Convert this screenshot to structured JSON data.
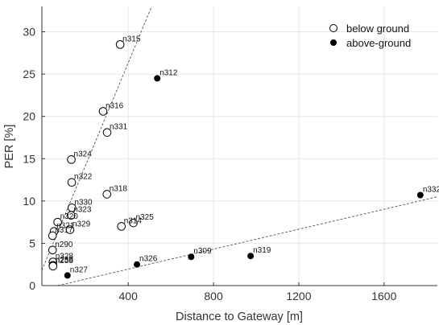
{
  "chart_data": {
    "type": "scatter",
    "xlabel": "Distance to Gateway [m]",
    "ylabel": "PER [%]",
    "xlim": [
      -5,
      1850
    ],
    "ylim": [
      0,
      33
    ],
    "xticks": [
      400,
      800,
      1200,
      1600
    ],
    "yticks": [
      0,
      5,
      10,
      15,
      20,
      25,
      30
    ],
    "grid": true,
    "legend_position": "top-right",
    "series": [
      {
        "name": "below ground",
        "marker": "open-circle",
        "points": [
          {
            "label": "n315",
            "x": 362,
            "y": 28.5
          },
          {
            "label": "n316",
            "x": 282,
            "y": 20.6
          },
          {
            "label": "n331",
            "x": 301,
            "y": 18.1
          },
          {
            "label": "n324",
            "x": 133,
            "y": 14.9
          },
          {
            "label": "n322",
            "x": 135,
            "y": 12.2
          },
          {
            "label": "n318",
            "x": 300,
            "y": 10.8
          },
          {
            "label": "n330",
            "x": 136,
            "y": 9.2
          },
          {
            "label": "n323",
            "x": 132,
            "y": 8.3
          },
          {
            "label": "n320",
            "x": 69,
            "y": 7.5
          },
          {
            "label": "n329",
            "x": 127,
            "y": 6.6
          },
          {
            "label": "n321",
            "x": 52,
            "y": 6.4
          },
          {
            "label": "n317",
            "x": 45,
            "y": 5.9
          },
          {
            "label": "n314",
            "x": 368,
            "y": 7.0
          },
          {
            "label": "n325",
            "x": 424,
            "y": 7.4
          },
          {
            "label": "n290",
            "x": 45,
            "y": 4.2
          },
          {
            "label": "n328",
            "x": 47,
            "y": 2.8
          },
          {
            "label": "n256",
            "x": 47,
            "y": 2.4
          },
          {
            "label": "n258",
            "x": 47,
            "y": 2.3
          }
        ]
      },
      {
        "name": "above-ground",
        "marker": "filled-circle",
        "points": [
          {
            "label": "n312",
            "x": 536,
            "y": 24.5
          },
          {
            "label": "n332",
            "x": 1770,
            "y": 10.7
          },
          {
            "label": "n309",
            "x": 695,
            "y": 3.4
          },
          {
            "label": "n319",
            "x": 974,
            "y": 3.5
          },
          {
            "label": "n326",
            "x": 441,
            "y": 2.5
          },
          {
            "label": "n327",
            "x": 115,
            "y": 1.2
          }
        ]
      }
    ],
    "fit_lines": [
      {
        "style": "dashed",
        "points": [
          [
            -5,
            1.8
          ],
          [
            510,
            33
          ]
        ]
      },
      {
        "style": "dashed",
        "points": [
          [
            70,
            0
          ],
          [
            1850,
            10.5
          ]
        ]
      }
    ]
  }
}
